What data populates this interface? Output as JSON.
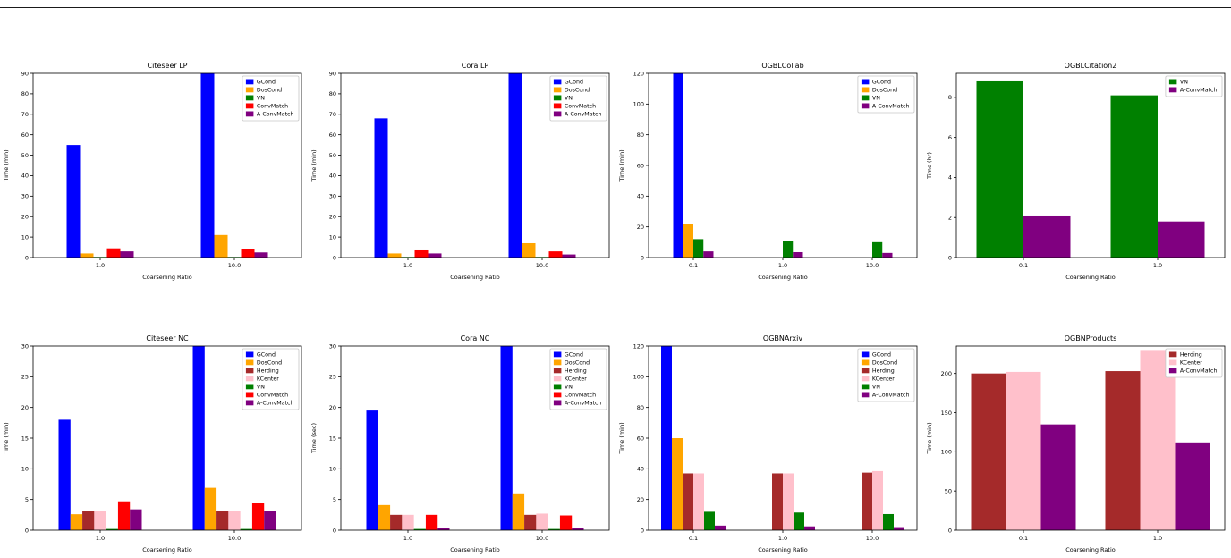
{
  "figure": {
    "background": "#ffffff",
    "top_rule_color": "#1a1a1a"
  },
  "palette": {
    "GCond": "#0000ff",
    "DosCond": "#ffa500",
    "Herding": "#a52a2a",
    "KCenter": "#ffc0cb",
    "VN": "#008000",
    "ConvMatch": "#ff0000",
    "A-ConvMatch": "#800080"
  },
  "chart_data": [
    {
      "id": "citeseer-lp",
      "type": "bar",
      "title": "Citeseer LP",
      "xlabel": "Coarsening Ratio",
      "ylabel": "Time (min)",
      "categories": [
        "1.0",
        "10.0"
      ],
      "ylim": [
        0,
        90
      ],
      "yticks": [
        0,
        10,
        20,
        30,
        40,
        50,
        60,
        70,
        80,
        90
      ],
      "grid": false,
      "legend_position": "upper right",
      "bar_cluster_fraction": 0.5,
      "series": [
        {
          "name": "GCond",
          "color": "#0000ff",
          "values": [
            55,
            90
          ]
        },
        {
          "name": "DosCond",
          "color": "#ffa500",
          "values": [
            2,
            11
          ]
        },
        {
          "name": "VN",
          "color": "#008000",
          "values": [
            0.3,
            0.3
          ]
        },
        {
          "name": "ConvMatch",
          "color": "#ff0000",
          "values": [
            4.5,
            4
          ]
        },
        {
          "name": "A-ConvMatch",
          "color": "#800080",
          "values": [
            3,
            2.5
          ]
        }
      ]
    },
    {
      "id": "cora-lp",
      "type": "bar",
      "title": "Cora LP",
      "xlabel": "Coarsening Ratio",
      "ylabel": "Time (min)",
      "categories": [
        "1.0",
        "10.0"
      ],
      "ylim": [
        0,
        90
      ],
      "yticks": [
        0,
        10,
        20,
        30,
        40,
        50,
        60,
        70,
        80,
        90
      ],
      "grid": false,
      "legend_position": "upper right",
      "bar_cluster_fraction": 0.5,
      "series": [
        {
          "name": "GCond",
          "color": "#0000ff",
          "values": [
            68,
            90
          ]
        },
        {
          "name": "DosCond",
          "color": "#ffa500",
          "values": [
            2,
            7
          ]
        },
        {
          "name": "VN",
          "color": "#008000",
          "values": [
            0.3,
            0.3
          ]
        },
        {
          "name": "ConvMatch",
          "color": "#ff0000",
          "values": [
            3.5,
            3
          ]
        },
        {
          "name": "A-ConvMatch",
          "color": "#800080",
          "values": [
            2,
            1.5
          ]
        }
      ]
    },
    {
      "id": "ogbl-collab",
      "type": "bar",
      "title": "OGBLCollab",
      "xlabel": "Coarsening Ratio",
      "ylabel": "Time (min)",
      "categories": [
        "0.1",
        "1.0",
        "10.0"
      ],
      "ylim": [
        0,
        120
      ],
      "yticks": [
        0,
        20,
        40,
        60,
        80,
        100,
        120
      ],
      "grid": false,
      "legend_position": "upper right",
      "bar_cluster_fraction": 0.45,
      "series": [
        {
          "name": "GCond",
          "color": "#0000ff",
          "values": [
            120,
            0,
            0
          ]
        },
        {
          "name": "DosCond",
          "color": "#ffa500",
          "values": [
            22,
            0,
            0
          ]
        },
        {
          "name": "VN",
          "color": "#008000",
          "values": [
            12,
            10.5,
            10
          ]
        },
        {
          "name": "A-ConvMatch",
          "color": "#800080",
          "values": [
            4,
            3.5,
            3
          ]
        }
      ]
    },
    {
      "id": "ogbl-citation2",
      "type": "bar",
      "title": "OGBLCitation2",
      "xlabel": "Coarsening Ratio",
      "ylabel": "Time (hr)",
      "categories": [
        "0.1",
        "1.0"
      ],
      "ylim": [
        0,
        9.2
      ],
      "yticks": [
        0,
        2,
        4,
        6,
        8
      ],
      "grid": false,
      "legend_position": "upper right",
      "bar_cluster_fraction": 0.7,
      "series": [
        {
          "name": "VN",
          "color": "#008000",
          "values": [
            8.8,
            8.1
          ]
        },
        {
          "name": "A-ConvMatch",
          "color": "#800080",
          "values": [
            2.1,
            1.8
          ]
        }
      ]
    },
    {
      "id": "citeseer-nc",
      "type": "bar",
      "title": "Citeseer NC",
      "xlabel": "Coarsening Ratio",
      "ylabel": "Time (min)",
      "categories": [
        "1.0",
        "10.0"
      ],
      "ylim": [
        0,
        30
      ],
      "yticks": [
        0,
        5,
        10,
        15,
        20,
        25,
        30
      ],
      "grid": false,
      "legend_position": "upper right",
      "bar_cluster_fraction": 0.62,
      "series": [
        {
          "name": "GCond",
          "color": "#0000ff",
          "values": [
            18,
            30
          ]
        },
        {
          "name": "DosCond",
          "color": "#ffa500",
          "values": [
            2.6,
            6.9
          ]
        },
        {
          "name": "Herding",
          "color": "#a52a2a",
          "values": [
            3.1,
            3.1
          ]
        },
        {
          "name": "KCenter",
          "color": "#ffc0cb",
          "values": [
            3.1,
            3.1
          ]
        },
        {
          "name": "VN",
          "color": "#008000",
          "values": [
            0.2,
            0.2
          ]
        },
        {
          "name": "ConvMatch",
          "color": "#ff0000",
          "values": [
            4.7,
            4.4
          ]
        },
        {
          "name": "A-ConvMatch",
          "color": "#800080",
          "values": [
            3.4,
            3.1
          ]
        }
      ]
    },
    {
      "id": "cora-nc",
      "type": "bar",
      "title": "Cora NC",
      "xlabel": "Coarsening Ratio",
      "ylabel": "Time (sec)",
      "categories": [
        "1.0",
        "10.0"
      ],
      "ylim": [
        0,
        30
      ],
      "yticks": [
        0,
        5,
        10,
        15,
        20,
        25,
        30
      ],
      "grid": false,
      "legend_position": "upper right",
      "bar_cluster_fraction": 0.62,
      "series": [
        {
          "name": "GCond",
          "color": "#0000ff",
          "values": [
            19.5,
            30
          ]
        },
        {
          "name": "DosCond",
          "color": "#ffa500",
          "values": [
            4.1,
            6
          ]
        },
        {
          "name": "Herding",
          "color": "#a52a2a",
          "values": [
            2.5,
            2.5
          ]
        },
        {
          "name": "KCenter",
          "color": "#ffc0cb",
          "values": [
            2.5,
            2.7
          ]
        },
        {
          "name": "VN",
          "color": "#008000",
          "values": [
            0.2,
            0.2
          ]
        },
        {
          "name": "ConvMatch",
          "color": "#ff0000",
          "values": [
            2.5,
            2.4
          ]
        },
        {
          "name": "A-ConvMatch",
          "color": "#800080",
          "values": [
            0.4,
            0.4
          ]
        }
      ]
    },
    {
      "id": "ogbn-arxiv",
      "type": "bar",
      "title": "OGBNArxiv",
      "xlabel": "Coarsening Ratio",
      "ylabel": "Time (min)",
      "categories": [
        "0.1",
        "1.0",
        "10.0"
      ],
      "ylim": [
        0,
        120
      ],
      "yticks": [
        0,
        20,
        40,
        60,
        80,
        100,
        120
      ],
      "grid": false,
      "legend_position": "upper right",
      "bar_cluster_fraction": 0.72,
      "series": [
        {
          "name": "GCond",
          "color": "#0000ff",
          "values": [
            120,
            0,
            0
          ]
        },
        {
          "name": "DosCond",
          "color": "#ffa500",
          "values": [
            60,
            0,
            0
          ]
        },
        {
          "name": "Herding",
          "color": "#a52a2a",
          "values": [
            37,
            37,
            37.5
          ]
        },
        {
          "name": "KCenter",
          "color": "#ffc0cb",
          "values": [
            37,
            37,
            38.5
          ]
        },
        {
          "name": "VN",
          "color": "#008000",
          "values": [
            12,
            11.5,
            10.5
          ]
        },
        {
          "name": "A-ConvMatch",
          "color": "#800080",
          "values": [
            3,
            2.5,
            2
          ]
        }
      ]
    },
    {
      "id": "ogbn-products",
      "type": "bar",
      "title": "OGBNProducts",
      "xlabel": "Coarsening Ratio",
      "ylabel": "Time (min)",
      "categories": [
        "0.1",
        "1.0"
      ],
      "ylim": [
        0,
        235
      ],
      "yticks": [
        0,
        50,
        100,
        150,
        200
      ],
      "grid": false,
      "legend_position": "upper right",
      "bar_cluster_fraction": 0.78,
      "series": [
        {
          "name": "Herding",
          "color": "#a52a2a",
          "values": [
            200,
            203
          ]
        },
        {
          "name": "KCenter",
          "color": "#ffc0cb",
          "values": [
            202,
            230
          ]
        },
        {
          "name": "A-ConvMatch",
          "color": "#800080",
          "values": [
            135,
            112
          ]
        }
      ]
    }
  ]
}
